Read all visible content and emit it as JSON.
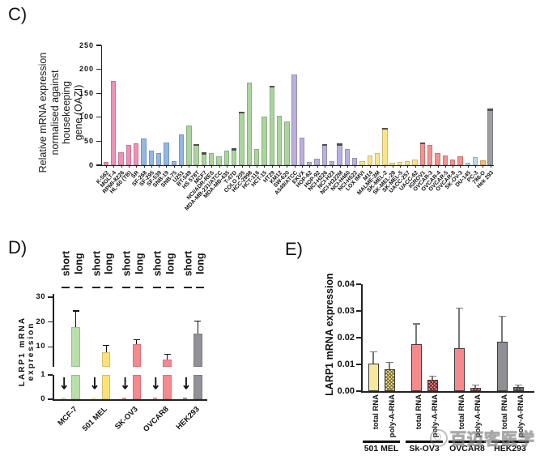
{
  "figure": {
    "panel_c_label": "C)",
    "panel_d_label": "D)",
    "panel_e_label": "E)",
    "c_ylabel": "Relative mRNA expression\nnormalised against housekeeping\ngene (OAZI)",
    "d_ylabel": "LARP1 mRNA expression",
    "e_ylabel": "LARP1 mRNA expression",
    "watermark_text": "百迈客医学"
  },
  "chart_data": [
    {
      "id": "C",
      "type": "bar",
      "ylabel": "Relative mRNA expression normalised against housekeeping gene (OAZI)",
      "ylim": [
        0,
        250
      ],
      "yticks": [
        0,
        50,
        100,
        150,
        200,
        250
      ],
      "cap_color": "#4e4e4e",
      "group_colors": {
        "pink": "#f190b6",
        "blue": "#93b7e3",
        "green": "#abd59e",
        "purple": "#b9b0de",
        "yellow": "#f9e48d",
        "salmon": "#f29291",
        "ltblue": "#bad8ee",
        "orange": "#f8bd78",
        "gray": "#9d9ea2"
      },
      "bars": [
        [
          "K-562",
          6,
          "pink",
          0
        ],
        [
          "MOLT-4",
          175,
          "pink",
          0
        ],
        [
          "RPMI-8226",
          27,
          "pink",
          0
        ],
        [
          "HL-60 (TB)",
          43,
          "pink",
          0
        ],
        [
          "SR",
          46,
          "pink",
          0
        ],
        [
          "SF-268",
          55,
          "blue",
          0
        ],
        [
          "SF-295",
          31,
          "blue",
          0
        ],
        [
          "SF-539",
          25,
          "blue",
          0
        ],
        [
          "SNB-19",
          48,
          "blue",
          0
        ],
        [
          "SNB-75",
          8,
          "blue",
          0
        ],
        [
          "U251",
          65,
          "blue",
          0
        ],
        [
          "BT-549",
          83,
          "green",
          0
        ],
        [
          "HS 578T",
          44,
          "green",
          1
        ],
        [
          "MCF7",
          27,
          "green",
          1
        ],
        [
          "NCI/ADR-RES",
          26,
          "green",
          0
        ],
        [
          "MDA-MB-231/ATCC",
          18,
          "green",
          0
        ],
        [
          "MDA-MB-435",
          30,
          "green",
          0
        ],
        [
          "T-47D",
          35,
          "green",
          1
        ],
        [
          "COLO 205",
          112,
          "green",
          1
        ],
        [
          "HCC-2998",
          173,
          "green",
          0
        ],
        [
          "HCT-116",
          33,
          "green",
          0
        ],
        [
          "HCT-15",
          101,
          "green",
          0
        ],
        [
          "HT29",
          166,
          "green",
          1
        ],
        [
          "KM12",
          103,
          "green",
          0
        ],
        [
          "SW-620",
          92,
          "green",
          0
        ],
        [
          "A549/ATCC",
          190,
          "purple",
          0
        ],
        [
          "EKVX",
          57,
          "purple",
          0
        ],
        [
          "HOP-62",
          7,
          "purple",
          0
        ],
        [
          "HOP-92",
          13,
          "purple",
          0
        ],
        [
          "NCI-H226",
          44,
          "purple",
          1
        ],
        [
          "NCI-H23",
          8,
          "purple",
          0
        ],
        [
          "NCI-H322M",
          45,
          "purple",
          1
        ],
        [
          "NCI-H460",
          33,
          "purple",
          0
        ],
        [
          "NCI-H522",
          15,
          "purple",
          0
        ],
        [
          "LOX IMVI",
          8,
          "yellow",
          0
        ],
        [
          "M14",
          20,
          "yellow",
          0
        ],
        [
          "MALME-3M",
          25,
          "yellow",
          0
        ],
        [
          "SK-MEL-2",
          78,
          "yellow",
          1
        ],
        [
          "SK-MEL-28",
          5,
          "yellow",
          0
        ],
        [
          "SK-MEL-5",
          6,
          "yellow",
          0
        ],
        [
          "UACC-257",
          9,
          "yellow",
          0
        ],
        [
          "UACC-62",
          12,
          "yellow",
          0
        ],
        [
          "IGROV1",
          48,
          "salmon",
          1
        ],
        [
          "OVCAR-3",
          43,
          "salmon",
          0
        ],
        [
          "OVCAR-4",
          25,
          "salmon",
          0
        ],
        [
          "OVCAR-5",
          20,
          "salmon",
          0
        ],
        [
          "OVCAR-8",
          12,
          "salmon",
          0
        ],
        [
          "SK-OV-3",
          18,
          "salmon",
          0
        ],
        [
          "DU-145",
          5,
          "ltblue",
          0
        ],
        [
          "PC-3",
          17,
          "ltblue",
          0
        ],
        [
          "786-O",
          10,
          "orange",
          0
        ],
        [
          "Hek 293",
          118,
          "gray",
          1
        ]
      ]
    },
    {
      "id": "D",
      "type": "bar",
      "ylabel": "LARP1 mRNA expression",
      "axis_break": true,
      "yticks_lower": [
        0,
        1
      ],
      "yticks_upper": [
        10,
        20,
        30
      ],
      "pair_labels": [
        "short",
        "long"
      ],
      "arrow_glyph": "↓",
      "colors": {
        "green2": "#b7dfa8",
        "yellow2": "#fbe178",
        "salmon2": "#f6898d",
        "gray2": "#919197"
      },
      "groups": [
        [
          "MCF-7",
          "green2",
          0.03,
          18,
          24.5
        ],
        [
          "501 MEL",
          "yellow2",
          0.03,
          8,
          10.7
        ],
        [
          "SK-OV3",
          "salmon2",
          0.03,
          11.2,
          13
        ],
        [
          "OVCAR8",
          "salmon2",
          0.03,
          5,
          7
        ],
        [
          "HEK293",
          "gray2",
          0.03,
          15.5,
          20.5
        ]
      ]
    },
    {
      "id": "E",
      "type": "bar",
      "ylabel": "LARP1 mRNA expression",
      "ylim": [
        0,
        0.04
      ],
      "ytick_labels": [
        "0.00",
        "0.01",
        "0.02",
        "0.03",
        "0.04"
      ],
      "bar_labels": [
        "total RNA",
        "poly-A-RNA"
      ],
      "err_color": "#777777",
      "groups": [
        [
          "501 MEL",
          "#f8e89c",
          "#6f652c",
          0.0103,
          0.0147,
          0.0083,
          0.0108
        ],
        [
          "Sk-OV3",
          "#f5898c",
          "#5c2426",
          0.0177,
          0.0252,
          0.0042,
          0.0057
        ],
        [
          "OVCAR8",
          "#f5898c",
          "#5c2426",
          0.016,
          0.0311,
          0.0012,
          0.0022
        ],
        [
          "HEK293",
          "#909094",
          "#3f4043",
          0.0185,
          0.028,
          0.0016,
          0.0023
        ]
      ]
    }
  ]
}
